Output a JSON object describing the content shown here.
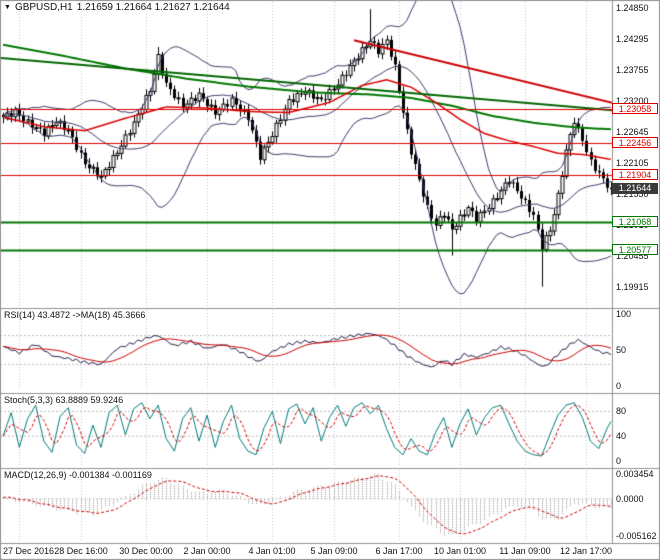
{
  "header": {
    "symbol": "GBPUSD,H1",
    "ohlc": "1.21659 1.21664 1.21627 1.21644"
  },
  "icons": {
    "dropdown": "▼"
  },
  "colors": {
    "bull": "#ffffff",
    "bear": "#000000",
    "wick": "#000000",
    "bollinger": "#3a3a6a",
    "ma_green": "#007700",
    "ma_red": "#dd0000",
    "level_red": "#dd0000",
    "level_green": "#007700",
    "rsi_line": "#20204a",
    "rsi_signal": "#cc0000",
    "stoch_line": "#007a7a",
    "stoch_signal": "#cc0000",
    "macd_hist": "#9a9a9a",
    "macd_signal": "#cc0000",
    "grid": "#c8c8c8",
    "panel_border": "#909090",
    "current_tag_bg": "#3a3a3a",
    "current_tag_text": "#ffffff"
  },
  "chart_data": [
    {
      "type": "candlestick",
      "name": "GBPUSD H1 main chart",
      "bars": 150,
      "y_axis_labels": [
        "1.24850",
        "1.24295",
        "1.23755",
        "1.23200",
        "1.22645",
        "1.22105",
        "1.21550",
        "1.21010",
        "1.20455",
        "1.19915"
      ],
      "time_ticks": [
        {
          "i": 4,
          "label": "27 Dec 2016"
        },
        {
          "i": 19,
          "label": "28 Dec 16:00"
        },
        {
          "i": 35,
          "label": "30 Dec 00:00"
        },
        {
          "i": 50,
          "label": "2 Jan 00:00"
        },
        {
          "i": 66,
          "label": "4 Jan 01:00"
        },
        {
          "i": 81,
          "label": "5 Jan 09:00"
        },
        {
          "i": 97,
          "label": "6 Jan 17:00"
        },
        {
          "i": 112,
          "label": "10 Jan 01:00"
        },
        {
          "i": 128,
          "label": "11 Jan 09:00"
        },
        {
          "i": 143,
          "label": "12 Jan 17:00"
        }
      ],
      "close_keypoints": [
        [
          0,
          1.2292
        ],
        [
          3,
          1.2301
        ],
        [
          6,
          1.2282
        ],
        [
          10,
          1.2264
        ],
        [
          13,
          1.2285
        ],
        [
          16,
          1.2268
        ],
        [
          20,
          1.221
        ],
        [
          24,
          1.2186
        ],
        [
          28,
          1.223
        ],
        [
          32,
          1.2281
        ],
        [
          36,
          1.234
        ],
        [
          38,
          1.2398
        ],
        [
          40,
          1.235
        ],
        [
          44,
          1.2311
        ],
        [
          48,
          1.2331
        ],
        [
          52,
          1.23
        ],
        [
          56,
          1.2322
        ],
        [
          60,
          1.2291
        ],
        [
          63,
          1.2222
        ],
        [
          66,
          1.2261
        ],
        [
          70,
          1.232
        ],
        [
          74,
          1.2338
        ],
        [
          78,
          1.2321
        ],
        [
          82,
          1.2351
        ],
        [
          86,
          1.2391
        ],
        [
          90,
          1.2428
        ],
        [
          92,
          1.2409
        ],
        [
          94,
          1.2427
        ],
        [
          96,
          1.238
        ],
        [
          98,
          1.2301
        ],
        [
          100,
          1.2231
        ],
        [
          102,
          1.2181
        ],
        [
          104,
          1.2131
        ],
        [
          106,
          1.2101
        ],
        [
          108,
          1.2122
        ],
        [
          110,
          1.2093
        ],
        [
          112,
          1.2113
        ],
        [
          114,
          1.2132
        ],
        [
          116,
          1.2112
        ],
        [
          118,
          1.2126
        ],
        [
          120,
          1.2142
        ],
        [
          122,
          1.2162
        ],
        [
          124,
          1.2182
        ],
        [
          126,
          1.2162
        ],
        [
          128,
          1.214
        ],
        [
          130,
          1.2118
        ],
        [
          132,
          1.2063
        ],
        [
          134,
          1.2092
        ],
        [
          136,
          1.2152
        ],
        [
          138,
          1.2232
        ],
        [
          140,
          1.2286
        ],
        [
          142,
          1.2252
        ],
        [
          144,
          1.2212
        ],
        [
          146,
          1.2192
        ],
        [
          148,
          1.2172
        ],
        [
          149,
          1.21644
        ]
      ],
      "spikes": [
        {
          "i": 38,
          "high": 1.2416
        },
        {
          "i": 90,
          "high": 1.2483
        },
        {
          "i": 110,
          "low": 1.2047
        },
        {
          "i": 132,
          "low": 1.1992
        }
      ],
      "levels": [
        {
          "price": 1.23058,
          "label": "1.23058",
          "color": "#dd0000",
          "width": 1
        },
        {
          "price": 1.22456,
          "label": "1.22456",
          "color": "#dd0000",
          "width": 1
        },
        {
          "price": 1.21904,
          "label": "1.21904",
          "color": "#dd0000",
          "width": 1
        },
        {
          "price": 1.21068,
          "label": "1.21068",
          "color": "#007700",
          "width": 2
        },
        {
          "price": 1.20577,
          "label": "1.20577",
          "color": "#007700",
          "width": 2
        }
      ],
      "current_price": {
        "value": 1.21644,
        "label": "1.21644"
      },
      "ma_green_keypoints": [
        [
          0,
          1.242
        ],
        [
          15,
          1.24
        ],
        [
          30,
          1.2378
        ],
        [
          45,
          1.236
        ],
        [
          60,
          1.2346
        ],
        [
          75,
          1.2336
        ],
        [
          90,
          1.2332
        ],
        [
          100,
          1.2326
        ],
        [
          110,
          1.2312
        ],
        [
          120,
          1.2294
        ],
        [
          130,
          1.2282
        ],
        [
          140,
          1.2274
        ],
        [
          150,
          1.227
        ]
      ],
      "ma_red_keypoints": [
        [
          0,
          1.2292
        ],
        [
          10,
          1.2275
        ],
        [
          20,
          1.2268
        ],
        [
          30,
          1.229
        ],
        [
          40,
          1.231
        ],
        [
          50,
          1.2308
        ],
        [
          60,
          1.2302
        ],
        [
          70,
          1.23
        ],
        [
          80,
          1.2318
        ],
        [
          88,
          1.2348
        ],
        [
          94,
          1.2358
        ],
        [
          100,
          1.2345
        ],
        [
          106,
          1.2318
        ],
        [
          112,
          1.2288
        ],
        [
          118,
          1.2263
        ],
        [
          124,
          1.225
        ],
        [
          130,
          1.224
        ],
        [
          136,
          1.2228
        ],
        [
          142,
          1.2226
        ],
        [
          150,
          1.2216
        ]
      ],
      "trendlines": [
        {
          "color": "#cc0000",
          "width": 2,
          "from": [
            86,
            1.2428
          ],
          "to": [
            166,
            1.2288
          ]
        },
        {
          "color": "#006600",
          "width": 2,
          "from": [
            -1,
            1.2397
          ],
          "to": [
            166,
            1.2294
          ]
        }
      ]
    },
    {
      "type": "line",
      "name": "RSI",
      "label": "RSI(14) 43.4872 ->MA(18) 45.3666",
      "range": [
        0,
        100
      ],
      "axis_labels": [
        "100",
        "50",
        "0"
      ],
      "axis_values": [
        100,
        50,
        0
      ],
      "levels": [
        70,
        30
      ],
      "keypoints": [
        [
          0,
          55
        ],
        [
          4,
          46
        ],
        [
          8,
          58
        ],
        [
          12,
          42
        ],
        [
          16,
          38
        ],
        [
          20,
          33
        ],
        [
          24,
          30
        ],
        [
          28,
          52
        ],
        [
          32,
          60
        ],
        [
          36,
          68
        ],
        [
          38,
          70
        ],
        [
          42,
          56
        ],
        [
          46,
          62
        ],
        [
          50,
          52
        ],
        [
          54,
          58
        ],
        [
          58,
          48
        ],
        [
          61,
          38
        ],
        [
          63,
          34
        ],
        [
          66,
          48
        ],
        [
          70,
          58
        ],
        [
          74,
          62
        ],
        [
          78,
          60
        ],
        [
          82,
          66
        ],
        [
          86,
          70
        ],
        [
          90,
          73
        ],
        [
          93,
          68
        ],
        [
          96,
          56
        ],
        [
          99,
          42
        ],
        [
          102,
          32
        ],
        [
          105,
          26
        ],
        [
          108,
          36
        ],
        [
          110,
          30
        ],
        [
          113,
          44
        ],
        [
          116,
          40
        ],
        [
          119,
          46
        ],
        [
          122,
          54
        ],
        [
          125,
          50
        ],
        [
          128,
          42
        ],
        [
          131,
          30
        ],
        [
          133,
          27
        ],
        [
          136,
          44
        ],
        [
          139,
          58
        ],
        [
          141,
          64
        ],
        [
          144,
          54
        ],
        [
          146,
          48
        ],
        [
          148,
          45
        ],
        [
          149,
          43.4872
        ]
      ]
    },
    {
      "type": "line",
      "name": "Stochastic",
      "label": "Stoch(5,3,3) 63.8889 59.9246",
      "range": [
        0,
        100
      ],
      "axis_labels": [
        "80",
        "40",
        "0"
      ],
      "axis_values": [
        80,
        40,
        0
      ],
      "levels": [
        80,
        40
      ],
      "keypoints": [
        [
          0,
          40
        ],
        [
          2,
          78
        ],
        [
          4,
          22
        ],
        [
          6,
          68
        ],
        [
          8,
          90
        ],
        [
          10,
          32
        ],
        [
          12,
          14
        ],
        [
          14,
          72
        ],
        [
          16,
          86
        ],
        [
          18,
          26
        ],
        [
          20,
          12
        ],
        [
          22,
          58
        ],
        [
          24,
          22
        ],
        [
          26,
          78
        ],
        [
          28,
          90
        ],
        [
          30,
          42
        ],
        [
          32,
          84
        ],
        [
          34,
          94
        ],
        [
          36,
          68
        ],
        [
          38,
          90
        ],
        [
          40,
          36
        ],
        [
          42,
          16
        ],
        [
          44,
          68
        ],
        [
          46,
          86
        ],
        [
          48,
          32
        ],
        [
          50,
          74
        ],
        [
          52,
          22
        ],
        [
          54,
          64
        ],
        [
          56,
          90
        ],
        [
          58,
          36
        ],
        [
          60,
          16
        ],
        [
          62,
          10
        ],
        [
          64,
          54
        ],
        [
          66,
          80
        ],
        [
          68,
          28
        ],
        [
          70,
          84
        ],
        [
          72,
          92
        ],
        [
          74,
          60
        ],
        [
          76,
          86
        ],
        [
          78,
          32
        ],
        [
          80,
          70
        ],
        [
          82,
          90
        ],
        [
          84,
          56
        ],
        [
          86,
          86
        ],
        [
          88,
          94
        ],
        [
          90,
          76
        ],
        [
          92,
          90
        ],
        [
          94,
          52
        ],
        [
          96,
          22
        ],
        [
          98,
          10
        ],
        [
          100,
          36
        ],
        [
          102,
          16
        ],
        [
          104,
          10
        ],
        [
          106,
          46
        ],
        [
          108,
          70
        ],
        [
          110,
          22
        ],
        [
          112,
          60
        ],
        [
          114,
          84
        ],
        [
          116,
          42
        ],
        [
          118,
          70
        ],
        [
          120,
          86
        ],
        [
          122,
          90
        ],
        [
          124,
          60
        ],
        [
          126,
          32
        ],
        [
          128,
          16
        ],
        [
          130,
          10
        ],
        [
          132,
          8
        ],
        [
          134,
          42
        ],
        [
          136,
          74
        ],
        [
          138,
          90
        ],
        [
          140,
          94
        ],
        [
          142,
          70
        ],
        [
          144,
          32
        ],
        [
          146,
          20
        ],
        [
          148,
          52
        ],
        [
          149,
          63.8889
        ]
      ]
    },
    {
      "type": "histogram",
      "name": "MACD",
      "label": "MACD(12,26,9) -0.001384 -0.001169",
      "range": [
        -0.005162,
        0.003454
      ],
      "axis_labels": [
        "0.003454",
        "0.0000",
        "-0.005162"
      ],
      "axis_values": [
        0.003454,
        0,
        -0.005162
      ],
      "keypoints": [
        [
          0,
          0.0002
        ],
        [
          6,
          -0.0006
        ],
        [
          12,
          -0.0013
        ],
        [
          18,
          -0.0019
        ],
        [
          22,
          -0.0021
        ],
        [
          26,
          -0.0011
        ],
        [
          32,
          0.0011
        ],
        [
          36,
          0.0024
        ],
        [
          40,
          0.0028
        ],
        [
          44,
          0.0016
        ],
        [
          48,
          0.0009
        ],
        [
          54,
          0.0011
        ],
        [
          58,
          0.0002
        ],
        [
          62,
          -0.001
        ],
        [
          66,
          -0.0004
        ],
        [
          70,
          0.0008
        ],
        [
          76,
          0.0016
        ],
        [
          82,
          0.0023
        ],
        [
          88,
          0.0031
        ],
        [
          92,
          0.0034
        ],
        [
          96,
          0.0018
        ],
        [
          100,
          -0.0012
        ],
        [
          104,
          -0.0036
        ],
        [
          108,
          -0.0049
        ],
        [
          110,
          -0.0052
        ],
        [
          114,
          -0.0041
        ],
        [
          118,
          -0.0029
        ],
        [
          122,
          -0.0016
        ],
        [
          126,
          -0.0009
        ],
        [
          130,
          -0.0016
        ],
        [
          132,
          -0.0029
        ],
        [
          136,
          -0.0027
        ],
        [
          140,
          -0.0006
        ],
        [
          144,
          -0.0009
        ],
        [
          148,
          -0.0013
        ],
        [
          149,
          -0.001384
        ]
      ]
    }
  ]
}
